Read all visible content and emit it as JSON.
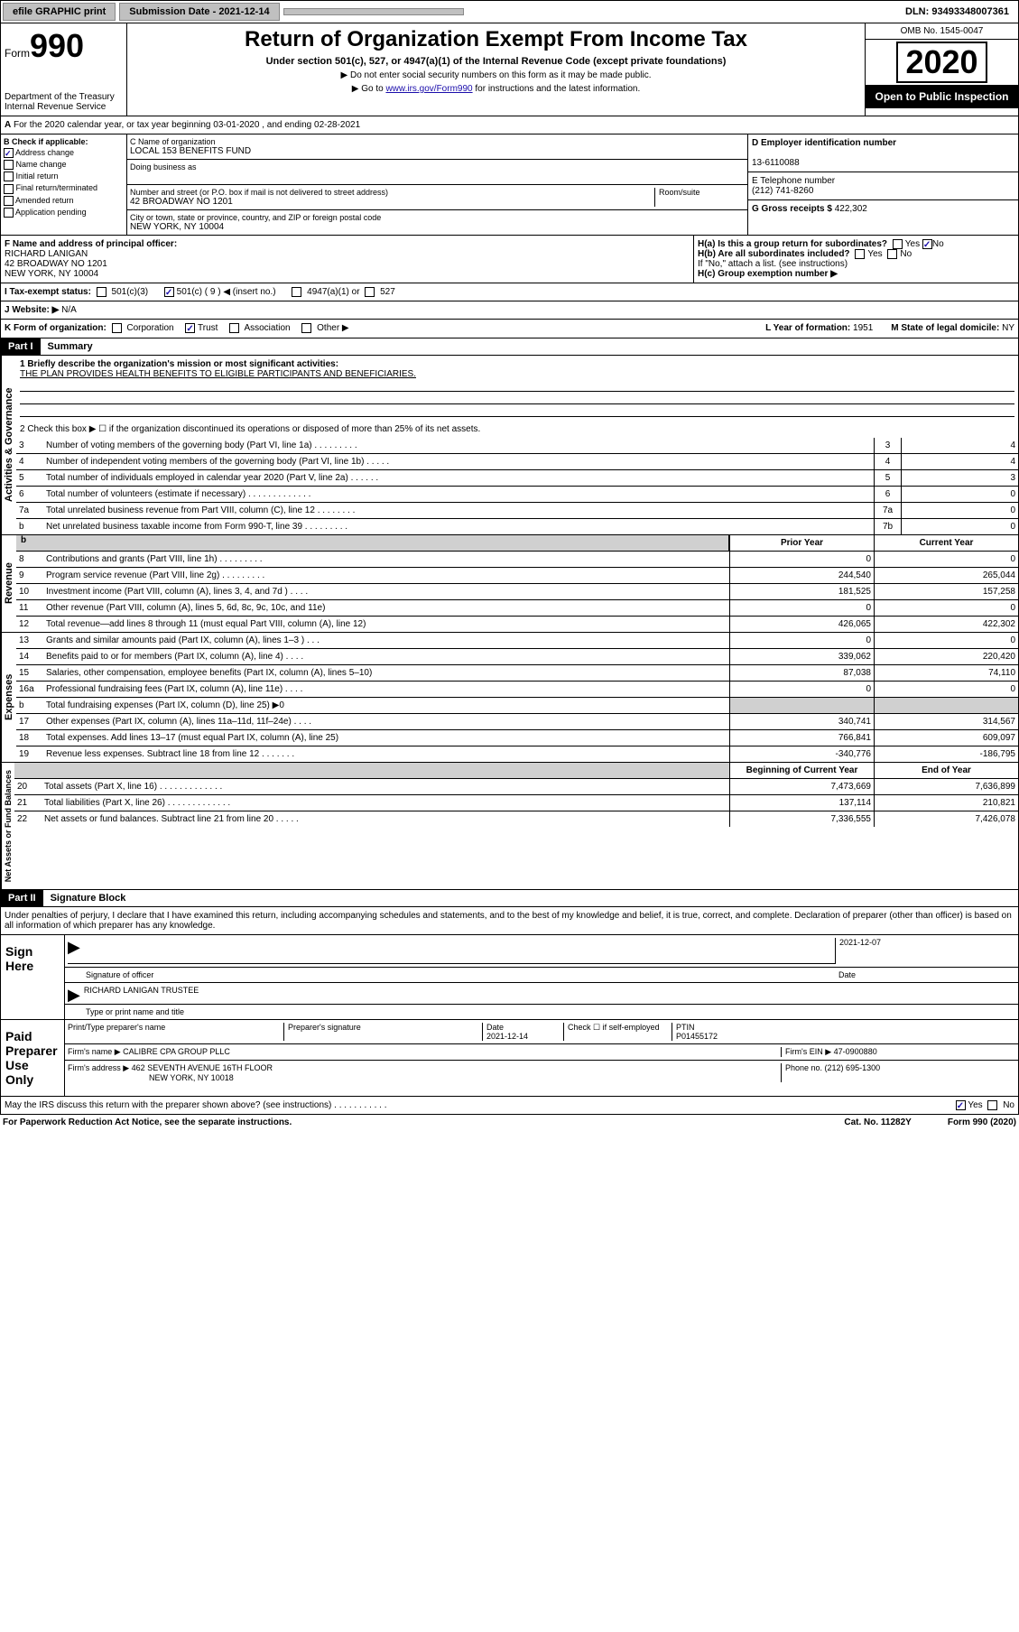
{
  "topbar": {
    "efile": "efile GRAPHIC print",
    "submission": "Submission Date - 2021-12-14",
    "dln": "DLN: 93493348007361"
  },
  "header": {
    "form_label": "Form",
    "form_num": "990",
    "dept": "Department of the Treasury\nInternal Revenue Service",
    "title": "Return of Organization Exempt From Income Tax",
    "subtitle": "Under section 501(c), 527, or 4947(a)(1) of the Internal Revenue Code (except private foundations)",
    "instr1": "▶ Do not enter social security numbers on this form as it may be made public.",
    "instr2_pre": "▶ Go to ",
    "instr2_link": "www.irs.gov/Form990",
    "instr2_post": " for instructions and the latest information.",
    "omb": "OMB No. 1545-0047",
    "year": "2020",
    "open": "Open to Public Inspection"
  },
  "period": {
    "text": "For the 2020 calendar year, or tax year beginning 03-01-2020   , and ending 02-28-2021"
  },
  "sectionB": {
    "label": "B Check if applicable:",
    "addr_change": "Address change",
    "name_change": "Name change",
    "initial": "Initial return",
    "final": "Final return/terminated",
    "amended": "Amended return",
    "app_pending": "Application pending"
  },
  "sectionC": {
    "label": "C Name of organization",
    "name": "LOCAL 153 BENEFITS FUND",
    "dba_label": "Doing business as",
    "addr_label": "Number and street (or P.O. box if mail is not delivered to street address)",
    "addr": "42 BROADWAY NO 1201",
    "room_label": "Room/suite",
    "city_label": "City or town, state or province, country, and ZIP or foreign postal code",
    "city": "NEW YORK, NY  10004"
  },
  "sectionD": {
    "label": "D Employer identification number",
    "ein": "13-6110088"
  },
  "sectionE": {
    "label": "E Telephone number",
    "phone": "(212) 741-8260"
  },
  "sectionG": {
    "label": "G Gross receipts $ ",
    "amount": "422,302"
  },
  "sectionF": {
    "label": "F  Name and address of principal officer:",
    "name": "RICHARD LANIGAN",
    "addr1": "42 BROADWAY NO 1201",
    "addr2": "NEW YORK, NY  10004"
  },
  "sectionH": {
    "a_label": "H(a)  Is this a group return for subordinates?",
    "b_label": "H(b)  Are all subordinates included?",
    "b_note": "If \"No,\" attach a list. (see instructions)",
    "c_label": "H(c)  Group exemption number ▶"
  },
  "sectionI": {
    "label": "I  Tax-exempt status:",
    "c3": "501(c)(3)",
    "c": "501(c) ( 9 ) ◀ (insert no.)",
    "a1": "4947(a)(1) or",
    "s527": "527"
  },
  "sectionJ": {
    "label": "J  Website: ▶",
    "val": "N/A"
  },
  "sectionK": {
    "label": "K Form of organization:",
    "corp": "Corporation",
    "trust": "Trust",
    "assoc": "Association",
    "other": "Other ▶"
  },
  "sectionL": {
    "label": "L Year of formation: ",
    "val": "1951"
  },
  "sectionM": {
    "label": "M State of legal domicile: ",
    "val": "NY"
  },
  "part1": {
    "label": "Part I",
    "title": "Summary",
    "line1_label": "1  Briefly describe the organization's mission or most significant activities:",
    "mission": "THE PLAN PROVIDES HEALTH BENEFITS TO ELIGIBLE PARTICIPANTS AND BENEFICIARIES.",
    "line2": "2   Check this box ▶ ☐  if the organization discontinued its operations or disposed of more than 25% of its net assets.",
    "gov_label": "Activities & Governance",
    "rev_label": "Revenue",
    "exp_label": "Expenses",
    "net_label": "Net Assets or Fund Balances",
    "rows_gov": [
      {
        "n": "3",
        "d": "Number of voting members of the governing body (Part VI, line 1a)   .    .    .    .    .    .    .    .    .",
        "ln": "3",
        "v": "4"
      },
      {
        "n": "4",
        "d": "Number of independent voting members of the governing body (Part VI, line 1b)   .    .    .    .    .",
        "ln": "4",
        "v": "4"
      },
      {
        "n": "5",
        "d": "Total number of individuals employed in calendar year 2020 (Part V, line 2a)   .    .    .    .    .    .",
        "ln": "5",
        "v": "3"
      },
      {
        "n": "6",
        "d": "Total number of volunteers (estimate if necessary)   .    .    .    .    .    .    .    .    .    .    .    .    .",
        "ln": "6",
        "v": "0"
      },
      {
        "n": "7a",
        "d": "Total unrelated business revenue from Part VIII, column (C), line 12   .    .    .    .    .    .    .    .",
        "ln": "7a",
        "v": "0"
      },
      {
        "n": "b",
        "d": "Net unrelated business taxable income from Form 990-T, line 39   .    .    .    .    .    .    .    .    .",
        "ln": "7b",
        "v": "0"
      }
    ],
    "prior_year": "Prior Year",
    "current_year": "Current Year",
    "rows_rev": [
      {
        "n": "8",
        "d": "Contributions and grants (Part VIII, line 1h)   .    .    .    .    .    .    .    .    .",
        "p": "0",
        "c": "0"
      },
      {
        "n": "9",
        "d": "Program service revenue (Part VIII, line 2g)   .    .    .    .    .    .    .    .    .",
        "p": "244,540",
        "c": "265,044"
      },
      {
        "n": "10",
        "d": "Investment income (Part VIII, column (A), lines 3, 4, and 7d )   .    .    .    .",
        "p": "181,525",
        "c": "157,258"
      },
      {
        "n": "11",
        "d": "Other revenue (Part VIII, column (A), lines 5, 6d, 8c, 9c, 10c, and 11e)",
        "p": "0",
        "c": "0"
      },
      {
        "n": "12",
        "d": "Total revenue—add lines 8 through 11 (must equal Part VIII, column (A), line 12)",
        "p": "426,065",
        "c": "422,302"
      }
    ],
    "rows_exp": [
      {
        "n": "13",
        "d": "Grants and similar amounts paid (Part IX, column (A), lines 1–3 )   .    .    .",
        "p": "0",
        "c": "0"
      },
      {
        "n": "14",
        "d": "Benefits paid to or for members (Part IX, column (A), line 4)   .    .    .    .",
        "p": "339,062",
        "c": "220,420"
      },
      {
        "n": "15",
        "d": "Salaries, other compensation, employee benefits (Part IX, column (A), lines 5–10)",
        "p": "87,038",
        "c": "74,110"
      },
      {
        "n": "16a",
        "d": "Professional fundraising fees (Part IX, column (A), line 11e)   .    .    .    .",
        "p": "0",
        "c": "0"
      },
      {
        "n": "b",
        "d": "Total fundraising expenses (Part IX, column (D), line 25) ▶0",
        "p": "",
        "c": "",
        "grey": true
      },
      {
        "n": "17",
        "d": "Other expenses (Part IX, column (A), lines 11a–11d, 11f–24e)   .    .    .    .",
        "p": "340,741",
        "c": "314,567"
      },
      {
        "n": "18",
        "d": "Total expenses. Add lines 13–17 (must equal Part IX, column (A), line 25)",
        "p": "766,841",
        "c": "609,097"
      },
      {
        "n": "19",
        "d": "Revenue less expenses. Subtract line 18 from line 12   .    .    .    .    .    .    .",
        "p": "-340,776",
        "c": "-186,795"
      }
    ],
    "begin_year": "Beginning of Current Year",
    "end_year": "End of Year",
    "rows_net": [
      {
        "n": "20",
        "d": "Total assets (Part X, line 16)   .    .    .    .    .    .    .    .    .    .    .    .    .",
        "p": "7,473,669",
        "c": "7,636,899"
      },
      {
        "n": "21",
        "d": "Total liabilities (Part X, line 26)   .    .    .    .    .    .    .    .    .    .    .    .    .",
        "p": "137,114",
        "c": "210,821"
      },
      {
        "n": "22",
        "d": "Net assets or fund balances. Subtract line 21 from line 20   .    .    .    .    .",
        "p": "7,336,555",
        "c": "7,426,078"
      }
    ]
  },
  "part2": {
    "label": "Part II",
    "title": "Signature Block",
    "perjury": "Under penalties of perjury, I declare that I have examined this return, including accompanying schedules and statements, and to the best of my knowledge and belief, it is true, correct, and complete. Declaration of preparer (other than officer) is based on all information of which preparer has any knowledge."
  },
  "sign": {
    "label": "Sign Here",
    "sig_officer": "Signature of officer",
    "date": "2021-12-07",
    "date_label": "Date",
    "name": "RICHARD LANIGAN  TRUSTEE",
    "name_label": "Type or print name and title"
  },
  "preparer": {
    "label": "Paid Preparer Use Only",
    "print_name_label": "Print/Type preparer's name",
    "sig_label": "Preparer's signature",
    "date_label": "Date",
    "date": "2021-12-14",
    "check_label": "Check ☐ if self-employed",
    "ptin_label": "PTIN",
    "ptin": "P01455172",
    "firm_name_label": "Firm's name    ▶",
    "firm_name": "CALIBRE CPA GROUP PLLC",
    "firm_ein_label": "Firm's EIN ▶",
    "firm_ein": "47-0900880",
    "firm_addr_label": "Firm's address ▶",
    "firm_addr1": "462 SEVENTH AVENUE 16TH FLOOR",
    "firm_addr2": "NEW YORK, NY  10018",
    "phone_label": "Phone no. ",
    "phone": "(212) 695-1300"
  },
  "irs_discuss": {
    "text": "May the IRS discuss this return with the preparer shown above? (see instructions)   .    .    .    .    .    .    .    .    .    .    .",
    "yes": "Yes",
    "no": "No"
  },
  "footer": {
    "left": "For Paperwork Reduction Act Notice, see the separate instructions.",
    "mid": "Cat. No. 11282Y",
    "right": "Form 990 (2020)"
  }
}
